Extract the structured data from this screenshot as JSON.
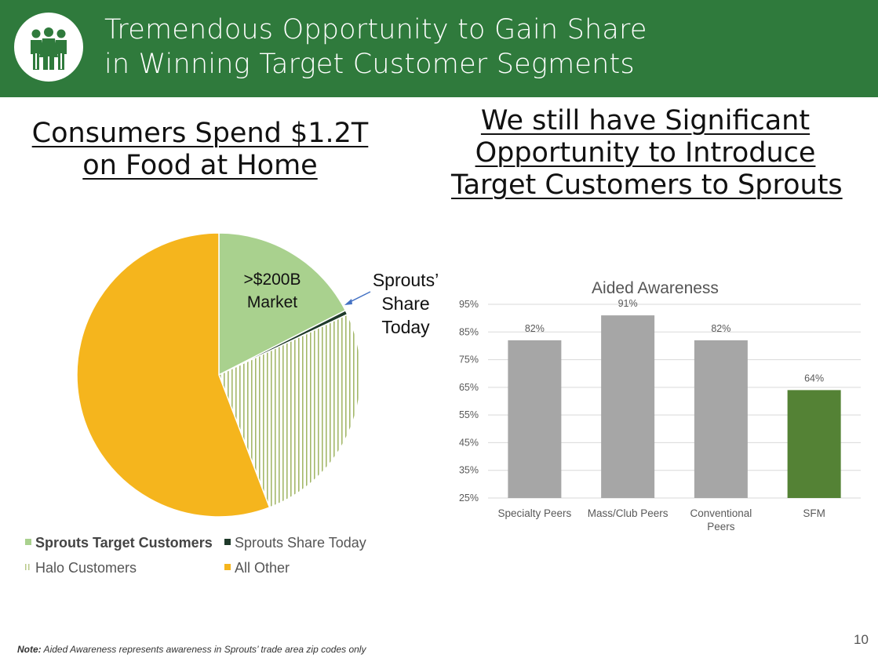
{
  "header": {
    "title_line1": "Tremendous Opportunity to Gain Share",
    "title_line2": "in Winning Target Customer Segments",
    "background_color": "#2f7a3c",
    "logo_icon": "people-group-icon"
  },
  "left": {
    "heading_line1": "Consumers Spend $1.2T",
    "heading_line2": "on Food at Home",
    "pie_label_market_line1": ">$200B",
    "pie_label_market_line2": "Market",
    "pie_label_share_line1": "Sprouts’",
    "pie_label_share_line2": "Share",
    "pie_label_share_line3": "Today"
  },
  "right": {
    "heading_line1": "We still have Significant",
    "heading_line2": "Opportunity to Introduce",
    "heading_line3": "Target Customers to Sprouts"
  },
  "legend": {
    "items": [
      {
        "label": "Sprouts Target Customers",
        "color": "#a9d18e",
        "bold": true
      },
      {
        "label": "Sprouts Share Today",
        "color": "#1f3a2a"
      },
      {
        "label": "Halo Customers",
        "color": "#b9c98a",
        "pattern": "vertical-lines"
      },
      {
        "label": "All Other",
        "color": "#f5b51d"
      }
    ]
  },
  "chart_data": [
    {
      "type": "pie",
      "title": "",
      "slices": [
        {
          "name": "Sprouts Target Customers",
          "fraction": 0.175,
          "color": "#a9d18e"
        },
        {
          "name": "Sprouts Share Today",
          "fraction": 0.005,
          "color": "#1f3a2a"
        },
        {
          "name": "Halo Customers",
          "fraction": 0.262,
          "color": "#b9c98a",
          "pattern": "vertical-lines"
        },
        {
          "name": "All Other",
          "fraction": 0.558,
          "color": "#f5b51d"
        }
      ]
    },
    {
      "type": "bar",
      "title": "Aided Awareness",
      "categories": [
        "Specialty Peers",
        "Mass/Club Peers",
        "Conventional Peers",
        "SFM"
      ],
      "category_lines": [
        [
          "Specialty Peers"
        ],
        [
          "Mass/Club Peers"
        ],
        [
          "Conventional",
          "Peers"
        ],
        [
          "SFM"
        ]
      ],
      "values": [
        82,
        91,
        82,
        64
      ],
      "data_labels": [
        "82%",
        "91%",
        "82%",
        "64%"
      ],
      "bar_colors": [
        "#a6a6a6",
        "#a6a6a6",
        "#a6a6a6",
        "#548235"
      ],
      "ylim": [
        25,
        95
      ],
      "yticks": [
        25,
        35,
        45,
        55,
        65,
        75,
        85,
        95
      ],
      "ytick_labels": [
        "25%",
        "35%",
        "45%",
        "55%",
        "65%",
        "75%",
        "85%",
        "95%"
      ],
      "grid": true
    }
  ],
  "footer": {
    "note_bold": "Note:",
    "note_text": " Aided Awareness represents awareness in Sprouts’ trade area zip codes only",
    "page_number": "10"
  }
}
